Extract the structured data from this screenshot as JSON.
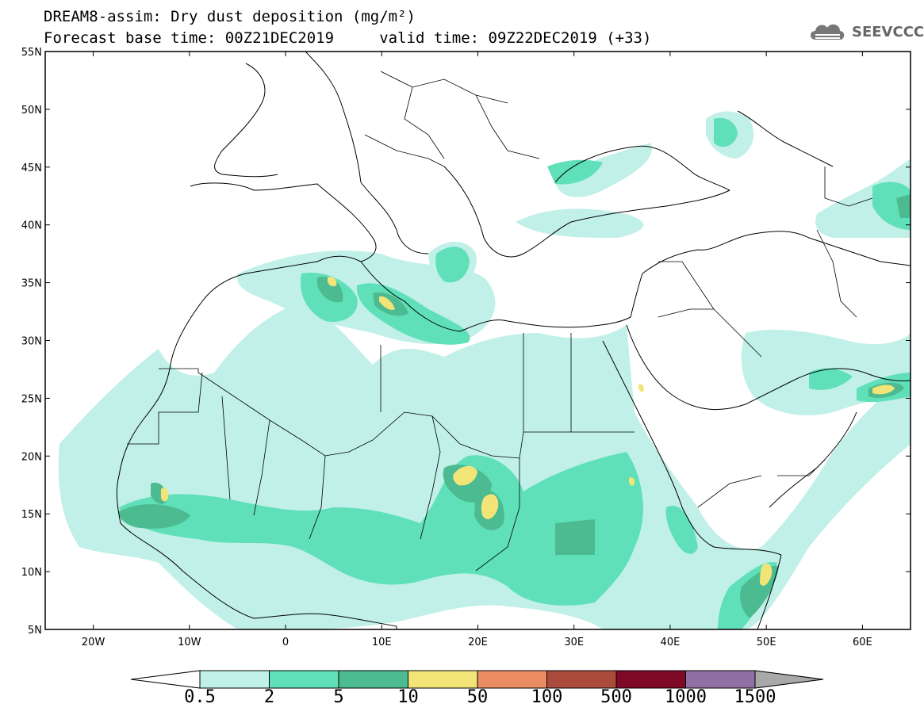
{
  "title": {
    "line1": "DREAM8-assim: Dry dust deposition (mg/m²)",
    "line2": "Forecast base time: 00Z21DEC2019     valid time: 09Z22DEC2019 (+33)"
  },
  "logo": {
    "text": "SEEVCCC",
    "icon": "cloud-icon"
  },
  "map": {
    "projection": "lat-lon",
    "lon_range": [
      -25,
      65
    ],
    "lat_range": [
      5,
      55
    ],
    "lon_ticks": [
      {
        "label": "20W",
        "lon": -20
      },
      {
        "label": "10W",
        "lon": -10
      },
      {
        "label": "0",
        "lon": 0
      },
      {
        "label": "10E",
        "lon": 10
      },
      {
        "label": "20E",
        "lon": 20
      },
      {
        "label": "30E",
        "lon": 30
      },
      {
        "label": "40E",
        "lon": 40
      },
      {
        "label": "50E",
        "lon": 50
      },
      {
        "label": "60E",
        "lon": 60
      }
    ],
    "lat_ticks": [
      {
        "label": "55N",
        "lat": 55
      },
      {
        "label": "50N",
        "lat": 50
      },
      {
        "label": "45N",
        "lat": 45
      },
      {
        "label": "40N",
        "lat": 40
      },
      {
        "label": "35N",
        "lat": 35
      },
      {
        "label": "30N",
        "lat": 30
      },
      {
        "label": "25N",
        "lat": 25
      },
      {
        "label": "20N",
        "lat": 20
      },
      {
        "label": "15N",
        "lat": 15
      },
      {
        "label": "10N",
        "lat": 10
      },
      {
        "label": "5N",
        "lat": 5
      }
    ]
  },
  "colorbar": {
    "labels": [
      "0.5",
      "2",
      "5",
      "10",
      "50",
      "100",
      "500",
      "1000",
      "1500"
    ],
    "colors": [
      "#c0f0e8",
      "#5fe0b8",
      "#4dbb92",
      "#f3e477",
      "#ea8d65",
      "#ab4b3c",
      "#7f0a27",
      "#8f6fa4"
    ],
    "under_color": "#ffffff",
    "over_color": "#a9a9a9"
  }
}
